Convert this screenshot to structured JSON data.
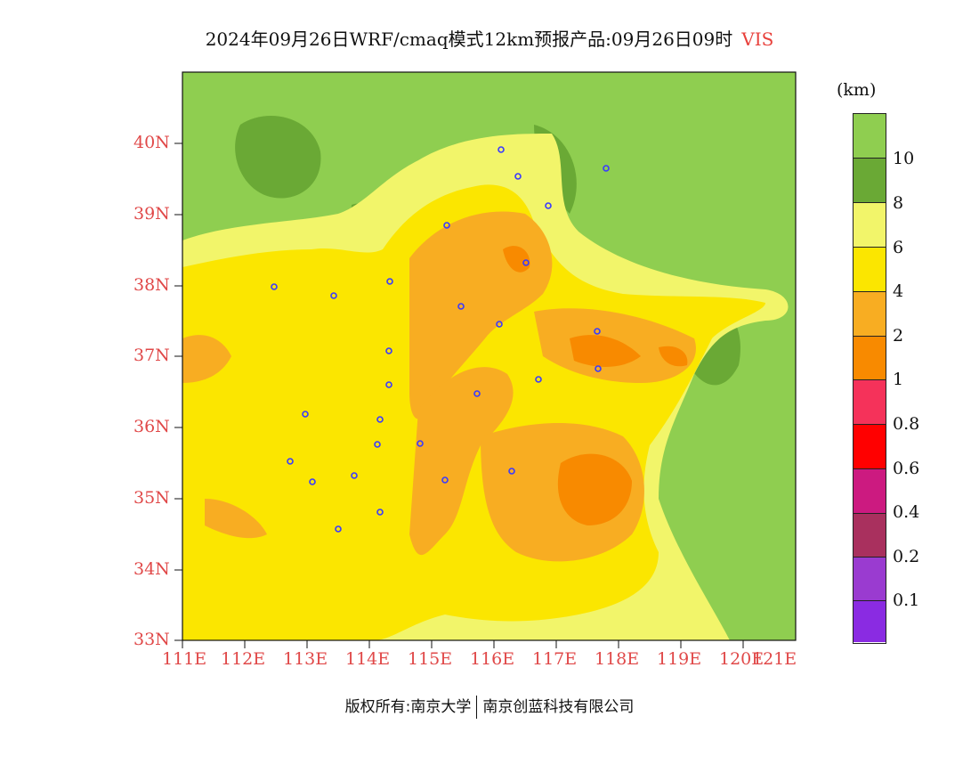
{
  "title": {
    "main": "2024年09月26日WRF/cmaq模式12km预报产品:09月26日09时",
    "variable": "VIS"
  },
  "axes": {
    "lat_labels": [
      "40N",
      "39N",
      "38N",
      "37N",
      "36N",
      "35N",
      "34N",
      "33N"
    ],
    "lon_labels": [
      "111E",
      "112E",
      "113E",
      "114E",
      "115E",
      "116E",
      "117E",
      "118E",
      "119E",
      "120E",
      "121E"
    ]
  },
  "colorbar": {
    "unit": "(km)",
    "levels": [
      "10",
      "8",
      "6",
      "4",
      "2",
      "1",
      "0.8",
      "0.6",
      "0.4",
      "0.2",
      "0.1"
    ],
    "colors": [
      "#8fce50",
      "#6aa935",
      "#f2f56a",
      "#fbe600",
      "#f8ad22",
      "#f88a00",
      "#f5325a",
      "#ff0000",
      "#cc1a80",
      "#a9305e",
      "#9a3bd0",
      "#8a2be2"
    ]
  },
  "copyright": {
    "left": "版权所有:南京大学",
    "right": "南京创蓝科技有限公司"
  }
}
